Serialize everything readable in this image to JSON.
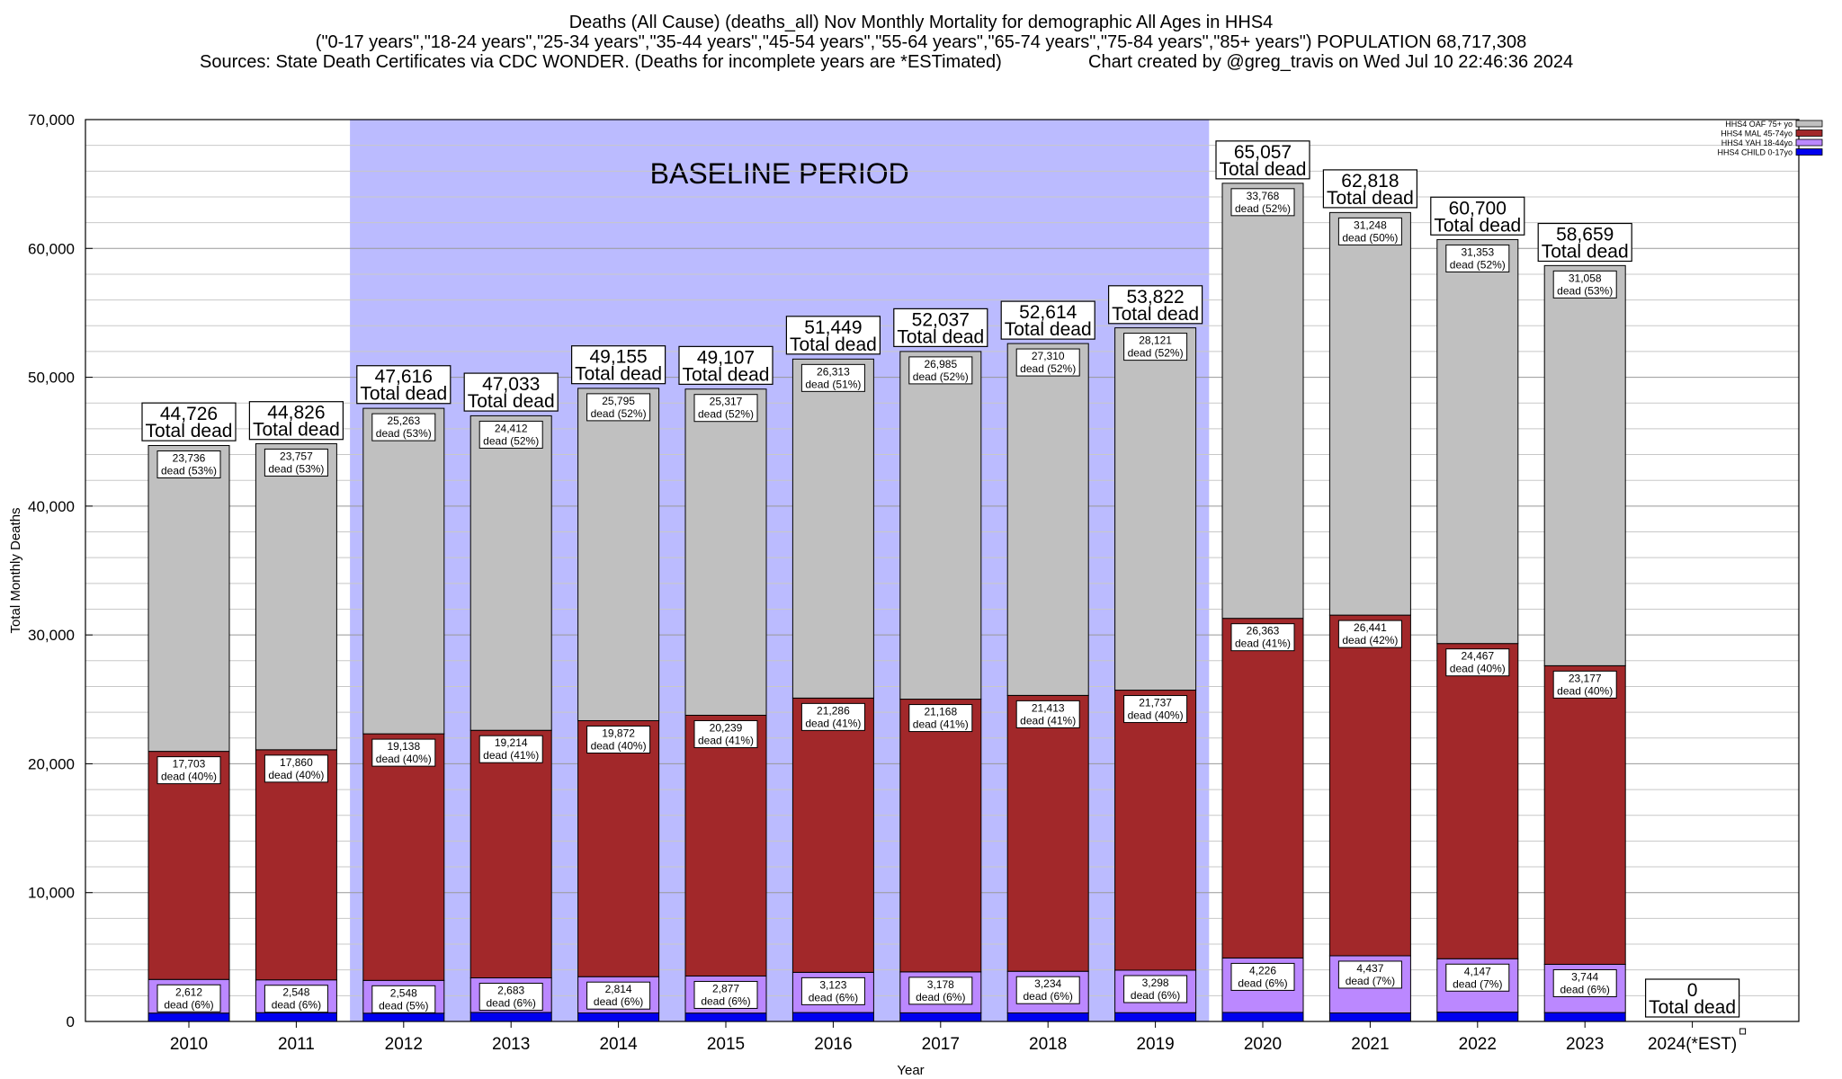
{
  "header": {
    "title": "Deaths (All Cause) (deaths_all) Nov Monthly Mortality for demographic All Ages in HHS4",
    "subtitle": "(\"0-17 years\",\"18-24 years\",\"25-34 years\",\"35-44 years\",\"45-54 years\",\"55-64 years\",\"65-74 years\",\"75-84 years\",\"85+ years\") POPULATION 68,717,308",
    "sources": "Sources: State Death Certificates via CDC WONDER. (Deaths for incomplete years are *ESTimated)",
    "credit": "Chart created by @greg_travis on Wed Jul 10 22:46:36 2024"
  },
  "chart_data": {
    "type": "bar",
    "stacked": true,
    "xlabel": "Year",
    "ylabel": "Total Monthly Deaths",
    "ylim": [
      0,
      70000
    ],
    "yticks": [
      "0",
      "10,000",
      "20,000",
      "30,000",
      "40,000",
      "50,000",
      "60,000",
      "70,000"
    ],
    "grid": true,
    "legend_position": "top-right",
    "categories": [
      "2010",
      "2011",
      "2012",
      "2013",
      "2014",
      "2015",
      "2016",
      "2017",
      "2018",
      "2019",
      "2020",
      "2021",
      "2022",
      "2023",
      "2024(*EST)"
    ],
    "series": [
      {
        "name": "HHS4 CHILD 0-17yo",
        "color": "#0000ee",
        "values": [
          650,
          680,
          640,
          700,
          660,
          650,
          690,
          670,
          660,
          680,
          700,
          660,
          720,
          690,
          0
        ]
      },
      {
        "name": "HHS4 YAH 18-44yo",
        "color": "#bb88ff",
        "values": [
          2612,
          2548,
          2548,
          2683,
          2814,
          2877,
          3123,
          3178,
          3234,
          3298,
          4226,
          4437,
          4147,
          3744,
          0
        ]
      },
      {
        "name": "HHS4 MAL 45-74yo",
        "color": "#a2282a",
        "values": [
          17703,
          17860,
          19138,
          19214,
          19872,
          20239,
          21286,
          21168,
          21413,
          21737,
          26363,
          26441,
          24467,
          23177,
          0
        ]
      },
      {
        "name": "HHS4 OAF 75+ yo",
        "color": "#c0c0c0",
        "values": [
          23736,
          23757,
          25263,
          24412,
          25795,
          25317,
          26313,
          26985,
          27310,
          28121,
          33768,
          31248,
          31353,
          31058,
          0
        ]
      }
    ],
    "totals": [
      44726,
      44826,
      47616,
      47033,
      49155,
      49107,
      51449,
      52037,
      52614,
      53822,
      65057,
      62818,
      60700,
      58659,
      0
    ],
    "total_text": [
      "44,726",
      "44,826",
      "47,616",
      "47,033",
      "49,155",
      "49,107",
      "51,449",
      "52,037",
      "52,614",
      "53,822",
      "65,057",
      "62,818",
      "60,700",
      "58,659",
      "0"
    ],
    "total_suffix": "Total dead",
    "segment_labels": {
      "HHS4 YAH 18-44yo": [
        [
          "2,612",
          "dead (6%)"
        ],
        [
          "2,548",
          "dead (6%)"
        ],
        [
          "2,548",
          "dead (5%)"
        ],
        [
          "2,683",
          "dead (6%)"
        ],
        [
          "2,814",
          "dead (6%)"
        ],
        [
          "2,877",
          "dead (6%)"
        ],
        [
          "3,123",
          "dead (6%)"
        ],
        [
          "3,178",
          "dead (6%)"
        ],
        [
          "3,234",
          "dead (6%)"
        ],
        [
          "3,298",
          "dead (6%)"
        ],
        [
          "4,226",
          "dead (6%)"
        ],
        [
          "4,437",
          "dead (7%)"
        ],
        [
          "4,147",
          "dead (7%)"
        ],
        [
          "3,744",
          "dead (6%)"
        ],
        null
      ],
      "HHS4 MAL 45-74yo": [
        [
          "17,703",
          "dead (40%)"
        ],
        [
          "17,860",
          "dead (40%)"
        ],
        [
          "19,138",
          "dead (40%)"
        ],
        [
          "19,214",
          "dead (41%)"
        ],
        [
          "19,872",
          "dead (40%)"
        ],
        [
          "20,239",
          "dead (41%)"
        ],
        [
          "21,286",
          "dead (41%)"
        ],
        [
          "21,168",
          "dead (41%)"
        ],
        [
          "21,413",
          "dead (41%)"
        ],
        [
          "21,737",
          "dead (40%)"
        ],
        [
          "26,363",
          "dead (41%)"
        ],
        [
          "26,441",
          "dead (42%)"
        ],
        [
          "24,467",
          "dead (40%)"
        ],
        [
          "23,177",
          "dead (40%)"
        ],
        null
      ],
      "HHS4 OAF 75+ yo": [
        [
          "23,736",
          "dead (53%)"
        ],
        [
          "23,757",
          "dead (53%)"
        ],
        [
          "25,263",
          "dead (53%)"
        ],
        [
          "24,412",
          "dead (52%)"
        ],
        [
          "25,795",
          "dead (52%)"
        ],
        [
          "25,317",
          "dead (52%)"
        ],
        [
          "26,313",
          "dead (51%)"
        ],
        [
          "26,985",
          "dead (52%)"
        ],
        [
          "27,310",
          "dead (52%)"
        ],
        [
          "28,121",
          "dead (52%)"
        ],
        [
          "33,768",
          "dead (52%)"
        ],
        [
          "31,248",
          "dead (50%)"
        ],
        [
          "31,353",
          "dead (52%)"
        ],
        [
          "31,058",
          "dead (53%)"
        ],
        null
      ]
    },
    "annotations": [
      {
        "text": "BASELINE PERIOD",
        "x_start": "2012",
        "x_end": "2019",
        "color": "#bbbbff"
      }
    ]
  }
}
